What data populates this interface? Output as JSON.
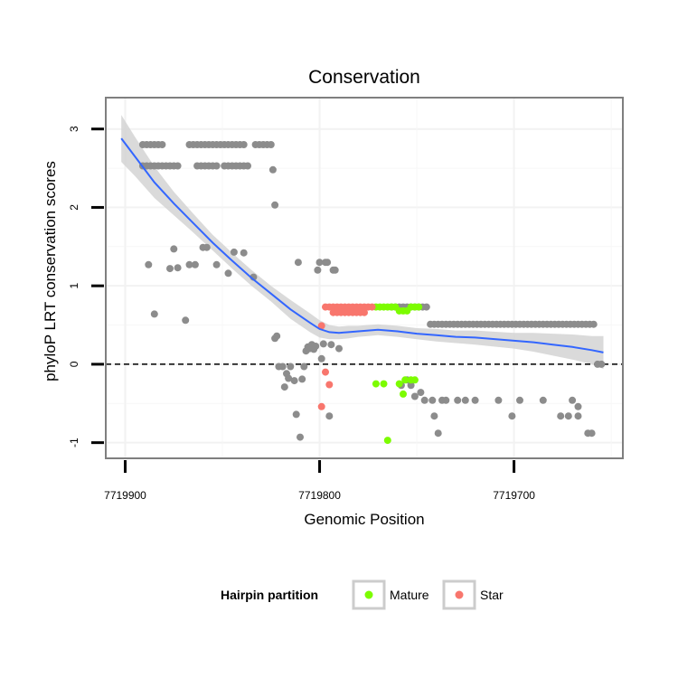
{
  "chart_data": {
    "type": "scatter",
    "title": "Conservation",
    "xlabel": "Genomic Position",
    "ylabel": "phyloP LRT conservation scores",
    "xlim": [
      7719910,
      7719644
    ],
    "ylim": [
      -1.2,
      3.4
    ],
    "x_reversed": true,
    "xticks": [
      7719900,
      7719800,
      7719700
    ],
    "xtick_labels": [
      "7719900",
      "7719800",
      "7719700"
    ],
    "yticks": [
      -1,
      0,
      1,
      2,
      3
    ],
    "ytick_labels": [
      "-1",
      "0",
      "1",
      "2",
      "3"
    ],
    "reference_line": {
      "y": 0,
      "style": "dashed"
    },
    "legend": {
      "title": "Hairpin partition",
      "position": "bottom",
      "entries": [
        {
          "label": "Mature",
          "color": "#7cfc00"
        },
        {
          "label": "Star",
          "color": "#f8766d"
        }
      ]
    },
    "colors": {
      "other": "#8c8c8c",
      "mature": "#7cfc00",
      "star": "#f8766d",
      "smooth": "#3366ff",
      "band": "#d4d4d4"
    },
    "series": [
      {
        "name": "Other",
        "points": [
          [
            7719891,
            2.8
          ],
          [
            7719889,
            2.8
          ],
          [
            7719887,
            2.8
          ],
          [
            7719885,
            2.8
          ],
          [
            7719883,
            2.8
          ],
          [
            7719881,
            2.8
          ],
          [
            7719891,
            2.53
          ],
          [
            7719889,
            2.53
          ],
          [
            7719887,
            2.53
          ],
          [
            7719885,
            2.53
          ],
          [
            7719883,
            2.53
          ],
          [
            7719881,
            2.53
          ],
          [
            7719879,
            2.53
          ],
          [
            7719877,
            2.53
          ],
          [
            7719875,
            2.53
          ],
          [
            7719873,
            2.53
          ],
          [
            7719867,
            2.8
          ],
          [
            7719865,
            2.8
          ],
          [
            7719863,
            2.8
          ],
          [
            7719861,
            2.8
          ],
          [
            7719859,
            2.8
          ],
          [
            7719857,
            2.8
          ],
          [
            7719855,
            2.8
          ],
          [
            7719853,
            2.8
          ],
          [
            7719851,
            2.8
          ],
          [
            7719849,
            2.8
          ],
          [
            7719847,
            2.8
          ],
          [
            7719845,
            2.8
          ],
          [
            7719843,
            2.8
          ],
          [
            7719841,
            2.8
          ],
          [
            7719839,
            2.8
          ],
          [
            7719863,
            2.53
          ],
          [
            7719861,
            2.53
          ],
          [
            7719859,
            2.53
          ],
          [
            7719857,
            2.53
          ],
          [
            7719855,
            2.53
          ],
          [
            7719853,
            2.53
          ],
          [
            7719849,
            2.53
          ],
          [
            7719847,
            2.53
          ],
          [
            7719845,
            2.53
          ],
          [
            7719843,
            2.53
          ],
          [
            7719841,
            2.53
          ],
          [
            7719839,
            2.53
          ],
          [
            7719837,
            2.53
          ],
          [
            7719833,
            2.8
          ],
          [
            7719831,
            2.8
          ],
          [
            7719829,
            2.8
          ],
          [
            7719827,
            2.8
          ],
          [
            7719825,
            2.8
          ],
          [
            7719824,
            2.48
          ],
          [
            7719823,
            2.03
          ],
          [
            7719888,
            1.27
          ],
          [
            7719885,
            0.64
          ],
          [
            7719877,
            1.22
          ],
          [
            7719875,
            1.47
          ],
          [
            7719873,
            1.23
          ],
          [
            7719869,
            0.56
          ],
          [
            7719867,
            1.27
          ],
          [
            7719864,
            1.27
          ],
          [
            7719860,
            1.49
          ],
          [
            7719858,
            1.49
          ],
          [
            7719853,
            1.27
          ],
          [
            7719847,
            1.16
          ],
          [
            7719844,
            1.43
          ],
          [
            7719839,
            1.42
          ],
          [
            7719834,
            1.11
          ],
          [
            7719823,
            0.33
          ],
          [
            7719822,
            0.36
          ],
          [
            7719821,
            -0.03
          ],
          [
            7719819,
            -0.03
          ],
          [
            7719818,
            -0.29
          ],
          [
            7719817,
            -0.12
          ],
          [
            7719816,
            -0.18
          ],
          [
            7719815,
            -0.03
          ],
          [
            7719813,
            -0.21
          ],
          [
            7719812,
            -0.64
          ],
          [
            7719811,
            1.3
          ],
          [
            7719810,
            -0.93
          ],
          [
            7719809,
            -0.19
          ],
          [
            7719808,
            -0.03
          ],
          [
            7719807,
            0.17
          ],
          [
            7719806,
            0.22
          ],
          [
            7719805,
            0.2
          ],
          [
            7719804,
            0.25
          ],
          [
            7719803,
            0.19
          ],
          [
            7719802,
            0.23
          ],
          [
            7719801,
            1.2
          ],
          [
            7719800,
            1.3
          ],
          [
            7719799,
            0.07
          ],
          [
            7719798,
            0.26
          ],
          [
            7719797,
            1.3
          ],
          [
            7719796,
            1.3
          ],
          [
            7719794,
            0.25
          ],
          [
            7719793,
            1.2
          ],
          [
            7719792,
            1.2
          ],
          [
            7719795,
            -0.66
          ],
          [
            7719790,
            0.2
          ],
          [
            7719755,
            0.73
          ],
          [
            7719753,
            0.73
          ],
          [
            7719751,
            0.73
          ],
          [
            7719749,
            0.73
          ],
          [
            7719747,
            0.73
          ],
          [
            7719745,
            0.73
          ],
          [
            7719757,
            0.73
          ],
          [
            7719759,
            0.73
          ],
          [
            7719761,
            0.73
          ],
          [
            7719763,
            0.73
          ],
          [
            7719758,
            -0.27
          ],
          [
            7719755,
            -0.2
          ],
          [
            7719753,
            -0.27
          ],
          [
            7719751,
            -0.41
          ],
          [
            7719748,
            -0.36
          ],
          [
            7719746,
            -0.46
          ],
          [
            7719742,
            -0.46
          ],
          [
            7719741,
            -0.66
          ],
          [
            7719739,
            -0.88
          ],
          [
            7719737,
            -0.46
          ],
          [
            7719735,
            -0.46
          ],
          [
            7719729,
            -0.46
          ],
          [
            7719725,
            -0.46
          ],
          [
            7719720,
            -0.46
          ],
          [
            7719708,
            -0.46
          ],
          [
            7719701,
            -0.66
          ],
          [
            7719697,
            -0.46
          ],
          [
            7719685,
            -0.46
          ],
          [
            7719676,
            -0.66
          ],
          [
            7719672,
            -0.66
          ],
          [
            7719670,
            -0.46
          ],
          [
            7719667,
            -0.66
          ],
          [
            7719667,
            -0.54
          ],
          [
            7719662,
            -0.88
          ],
          [
            7719660,
            -0.88
          ],
          [
            7719657,
            0.0
          ],
          [
            7719655,
            0.0
          ],
          [
            7719743,
            0.51
          ],
          [
            7719741,
            0.51
          ],
          [
            7719739,
            0.51
          ],
          [
            7719737,
            0.51
          ],
          [
            7719735,
            0.51
          ],
          [
            7719733,
            0.51
          ],
          [
            7719731,
            0.51
          ],
          [
            7719729,
            0.51
          ],
          [
            7719727,
            0.51
          ],
          [
            7719725,
            0.51
          ],
          [
            7719723,
            0.51
          ],
          [
            7719721,
            0.51
          ],
          [
            7719719,
            0.51
          ],
          [
            7719717,
            0.51
          ],
          [
            7719715,
            0.51
          ],
          [
            7719713,
            0.51
          ],
          [
            7719711,
            0.51
          ],
          [
            7719709,
            0.51
          ],
          [
            7719707,
            0.51
          ],
          [
            7719705,
            0.51
          ],
          [
            7719703,
            0.51
          ],
          [
            7719701,
            0.51
          ],
          [
            7719699,
            0.51
          ],
          [
            7719697,
            0.51
          ],
          [
            7719695,
            0.51
          ],
          [
            7719693,
            0.51
          ],
          [
            7719691,
            0.51
          ],
          [
            7719689,
            0.51
          ],
          [
            7719687,
            0.51
          ],
          [
            7719685,
            0.51
          ],
          [
            7719683,
            0.51
          ],
          [
            7719681,
            0.51
          ],
          [
            7719679,
            0.51
          ],
          [
            7719677,
            0.51
          ],
          [
            7719675,
            0.51
          ],
          [
            7719673,
            0.51
          ],
          [
            7719671,
            0.51
          ],
          [
            7719669,
            0.51
          ],
          [
            7719667,
            0.51
          ],
          [
            7719665,
            0.51
          ],
          [
            7719663,
            0.51
          ],
          [
            7719661,
            0.51
          ],
          [
            7719659,
            0.51
          ]
        ]
      },
      {
        "name": "Mature",
        "points": [
          [
            7719771,
            0.73
          ],
          [
            7719769,
            0.73
          ],
          [
            7719767,
            0.73
          ],
          [
            7719765,
            0.73
          ],
          [
            7719763,
            0.73
          ],
          [
            7719761,
            0.73
          ],
          [
            7719759,
            0.68
          ],
          [
            7719757,
            0.68
          ],
          [
            7719755,
            0.68
          ],
          [
            7719753,
            0.73
          ],
          [
            7719751,
            0.73
          ],
          [
            7719749,
            0.73
          ],
          [
            7719771,
            -0.25
          ],
          [
            7719767,
            -0.25
          ],
          [
            7719765,
            -0.97
          ],
          [
            7719759,
            -0.25
          ],
          [
            7719757,
            -0.38
          ],
          [
            7719756,
            -0.2
          ],
          [
            7719753,
            -0.2
          ],
          [
            7719751,
            -0.2
          ]
        ]
      },
      {
        "name": "Star",
        "points": [
          [
            7719797,
            0.73
          ],
          [
            7719795,
            0.73
          ],
          [
            7719793,
            0.73
          ],
          [
            7719791,
            0.73
          ],
          [
            7719789,
            0.73
          ],
          [
            7719787,
            0.73
          ],
          [
            7719785,
            0.73
          ],
          [
            7719783,
            0.73
          ],
          [
            7719781,
            0.73
          ],
          [
            7719779,
            0.73
          ],
          [
            7719777,
            0.73
          ],
          [
            7719775,
            0.73
          ],
          [
            7719773,
            0.73
          ],
          [
            7719793,
            0.66
          ],
          [
            7719791,
            0.66
          ],
          [
            7719789,
            0.66
          ],
          [
            7719787,
            0.66
          ],
          [
            7719785,
            0.66
          ],
          [
            7719783,
            0.66
          ],
          [
            7719781,
            0.66
          ],
          [
            7719779,
            0.66
          ],
          [
            7719777,
            0.66
          ],
          [
            7719799,
            0.49
          ],
          [
            7719799,
            -0.54
          ],
          [
            7719797,
            -0.1
          ],
          [
            7719795,
            -0.26
          ]
        ]
      }
    ],
    "smooth": {
      "method": "loess",
      "x": [
        7719902,
        7719895,
        7719885,
        7719875,
        7719865,
        7719855,
        7719845,
        7719835,
        7719825,
        7719815,
        7719805,
        7719800,
        7719795,
        7719790,
        7719785,
        7719780,
        7719775,
        7719770,
        7719760,
        7719750,
        7719740,
        7719730,
        7719720,
        7719700,
        7719690,
        7719680,
        7719670,
        7719660,
        7719654
      ],
      "y": [
        2.88,
        2.65,
        2.32,
        2.05,
        1.8,
        1.55,
        1.32,
        1.1,
        0.9,
        0.7,
        0.53,
        0.45,
        0.41,
        0.4,
        0.41,
        0.42,
        0.43,
        0.44,
        0.42,
        0.39,
        0.37,
        0.35,
        0.34,
        0.3,
        0.28,
        0.25,
        0.22,
        0.18,
        0.15
      ],
      "lower": [
        2.58,
        2.4,
        2.12,
        1.9,
        1.68,
        1.45,
        1.22,
        1.0,
        0.8,
        0.58,
        0.41,
        0.34,
        0.32,
        0.32,
        0.33,
        0.35,
        0.36,
        0.37,
        0.35,
        0.32,
        0.29,
        0.27,
        0.25,
        0.2,
        0.16,
        0.11,
        0.06,
        0.0,
        -0.06
      ],
      "upper": [
        3.18,
        2.9,
        2.52,
        2.2,
        1.92,
        1.65,
        1.42,
        1.2,
        1.0,
        0.82,
        0.65,
        0.56,
        0.5,
        0.48,
        0.49,
        0.49,
        0.5,
        0.51,
        0.49,
        0.46,
        0.45,
        0.43,
        0.43,
        0.4,
        0.4,
        0.39,
        0.38,
        0.36,
        0.36
      ]
    }
  }
}
